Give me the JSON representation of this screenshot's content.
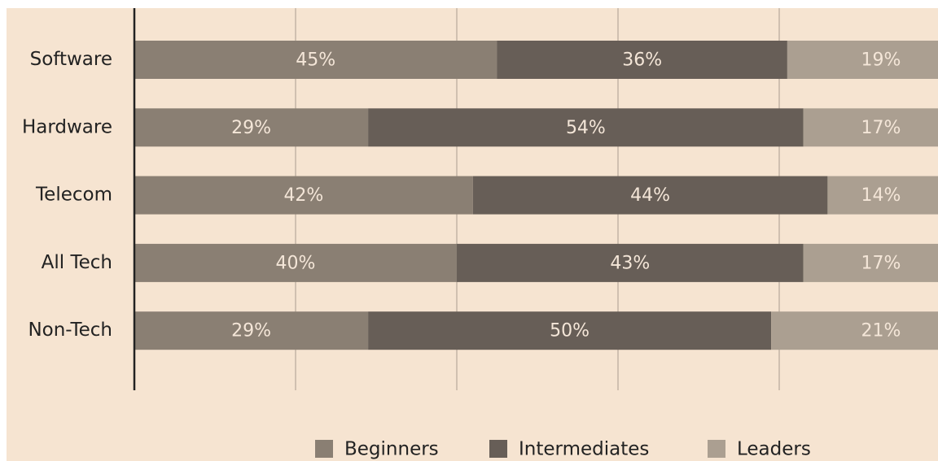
{
  "chart_data": {
    "type": "stacked-barh",
    "categories": [
      "Software",
      "Hardware",
      "Telecom",
      "All Tech",
      "Non-Tech"
    ],
    "series": [
      {
        "name": "Beginners",
        "color": "#8a7f73",
        "values": [
          45,
          29,
          42,
          40,
          29
        ],
        "value_labels": [
          "45%",
          "29%",
          "42%",
          "40%",
          "29%"
        ]
      },
      {
        "name": "Intermediates",
        "color": "#675e57",
        "values": [
          36,
          54,
          44,
          43,
          50
        ],
        "value_labels": [
          "36%",
          "54%",
          "44%",
          "43%",
          "50%"
        ]
      },
      {
        "name": "Leaders",
        "color": "#ab9f91",
        "values": [
          19,
          17,
          14,
          17,
          21
        ],
        "value_labels": [
          "19%",
          "17%",
          "14%",
          "17%",
          "21%"
        ]
      }
    ],
    "xlim": [
      0,
      100
    ],
    "xticks": [
      20,
      40,
      60,
      80
    ],
    "tick_labels": false,
    "grid": true,
    "legend": "bottom"
  }
}
